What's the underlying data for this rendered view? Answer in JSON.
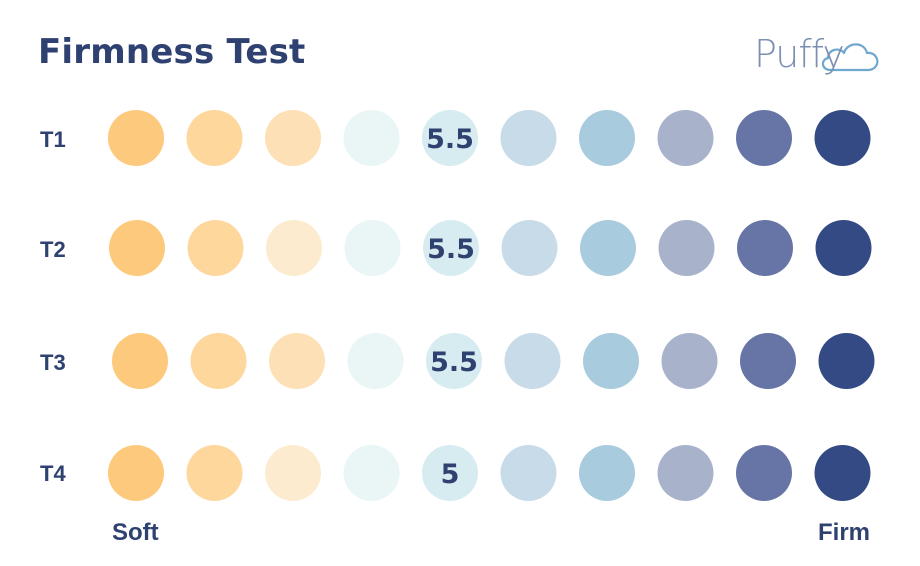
{
  "title": "Firmness Test",
  "logo": {
    "text": "Puffy"
  },
  "chart_data": {
    "type": "heatmap",
    "title": "Firmness Test",
    "rows": [
      {
        "label": "T1",
        "value": 5.5,
        "value_label": "5.5"
      },
      {
        "label": "T2",
        "value": 5.5,
        "value_label": "5.5"
      },
      {
        "label": "T3",
        "value": 5.5,
        "value_label": "5.5"
      },
      {
        "label": "T4",
        "value": 5,
        "value_label": "5"
      }
    ],
    "scale": {
      "min_label": "Soft",
      "max_label": "Firm",
      "steps": 10
    },
    "colors": {
      "T1": [
        "#fdc97c",
        "#fed79d",
        "#fde0b5",
        "#e9f6f5",
        "#d7ecf0",
        "#c8dbe8",
        "#a8cbde",
        "#a8b2cb",
        "#6675a6",
        "#334a84"
      ],
      "T2": [
        "#fdc97c",
        "#fed79d",
        "#fdebcf",
        "#e9f6f5",
        "#d7ecf0",
        "#c8dbe8",
        "#a8cbde",
        "#a8b2cb",
        "#6675a6",
        "#334a84"
      ],
      "T3": [
        "#fdc97c",
        "#fed79d",
        "#fde0b5",
        "#e9f6f5",
        "#d7ecf0",
        "#c8dbe8",
        "#a8cbde",
        "#a8b2cb",
        "#6675a6",
        "#334a84"
      ],
      "T4": [
        "#fdc97c",
        "#fed79d",
        "#fdebcf",
        "#e9f6f5",
        "#d7ecf0",
        "#c8dbe8",
        "#a8cbde",
        "#a8b2cb",
        "#6675a6",
        "#334a84"
      ]
    }
  }
}
